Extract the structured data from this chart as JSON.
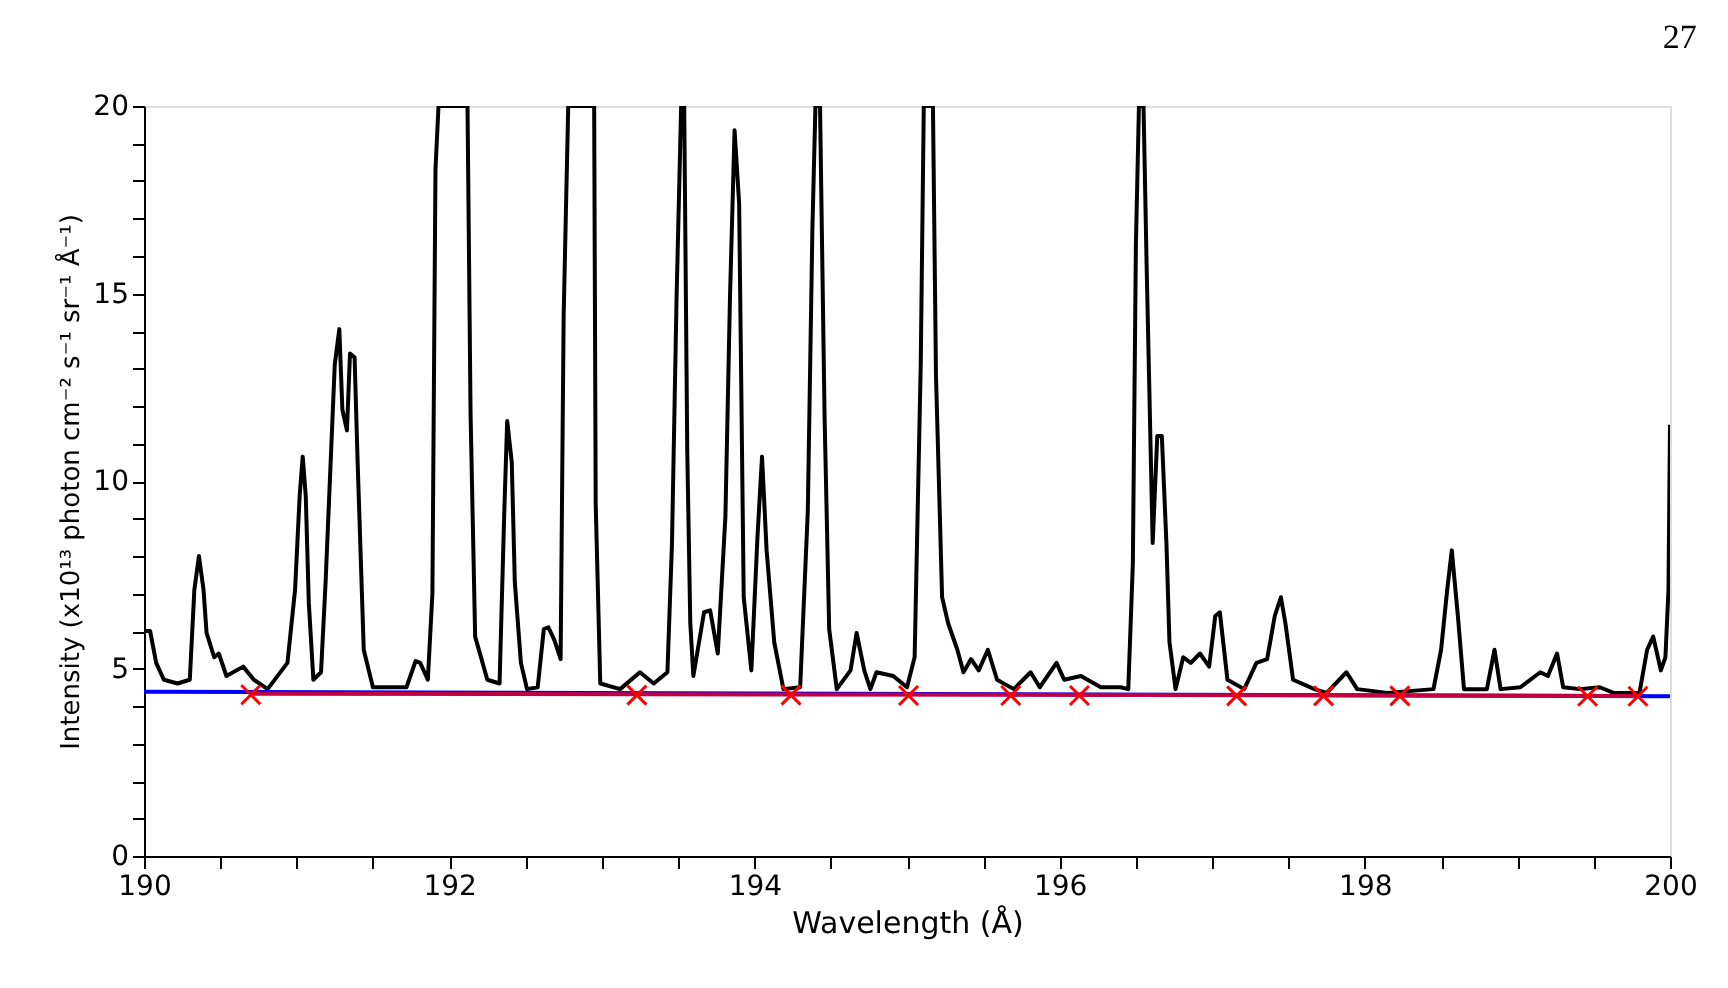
{
  "chart_data": {
    "type": "line",
    "xlabel": "Wavelength (Å)",
    "ylabel": "Intensity (x10¹³ photon cm⁻² s⁻¹ sr⁻¹ Å⁻¹)",
    "annotations": [
      "27"
    ],
    "xlim": [
      190,
      200
    ],
    "ylim": [
      0,
      20
    ],
    "xticks": [
      190,
      {
        "value": 190.5,
        "label": null
      },
      {
        "value": 191,
        "label": null
      },
      {
        "value": 191.5,
        "label": null
      },
      192,
      {
        "value": 192.5,
        "label": null
      },
      {
        "value": 193,
        "label": null
      },
      {
        "value": 193.5,
        "label": null
      },
      194,
      {
        "value": 194.5,
        "label": null
      },
      {
        "value": 195,
        "label": null
      },
      {
        "value": 195.5,
        "label": null
      },
      196,
      {
        "value": 196.5,
        "label": null
      },
      {
        "value": 197,
        "label": null
      },
      {
        "value": 197.5,
        "label": null
      },
      198,
      {
        "value": 198.5,
        "label": null
      },
      {
        "value": 199,
        "label": null
      },
      {
        "value": 199.5,
        "label": null
      },
      200
    ],
    "yticks": [
      0,
      {
        "value": 1,
        "label": null
      },
      {
        "value": 2,
        "label": null
      },
      {
        "value": 3,
        "label": null
      },
      {
        "value": 4,
        "label": null
      },
      5,
      {
        "value": 6,
        "label": null
      },
      {
        "value": 7,
        "label": null
      },
      {
        "value": 8,
        "label": null
      },
      {
        "value": 9,
        "label": null
      },
      10,
      {
        "value": 11,
        "label": null
      },
      {
        "value": 12,
        "label": null
      },
      {
        "value": 13,
        "label": null
      },
      {
        "value": 14,
        "label": null
      },
      15,
      {
        "value": 16,
        "label": null
      },
      {
        "value": 17,
        "label": null
      },
      {
        "value": 18,
        "label": null
      },
      {
        "value": 19,
        "label": null
      },
      20
    ],
    "grid": false,
    "series": [
      {
        "type": "line",
        "color": "#000000",
        "line_style": "solid",
        "marker": "none",
        "x": [
          190.01,
          190.04,
          190.08,
          190.13,
          190.22,
          190.3,
          190.33,
          190.36,
          190.39,
          190.41,
          190.46,
          190.49,
          190.54,
          190.65,
          190.72,
          190.81,
          190.94,
          190.99,
          191.02,
          191.04,
          191.06,
          191.08,
          191.11,
          191.16,
          191.19,
          191.25,
          191.28,
          191.3,
          191.33,
          191.35,
          191.38,
          191.4,
          191.44,
          191.5,
          191.66,
          191.72,
          191.78,
          191.81,
          191.86,
          191.89,
          191.91,
          191.93,
          192.12,
          192.14,
          192.17,
          192.25,
          192.33,
          192.36,
          192.38,
          192.41,
          192.43,
          192.47,
          192.51,
          192.58,
          192.62,
          192.65,
          192.69,
          192.73,
          192.75,
          192.78,
          192.95,
          192.96,
          192.99,
          193.12,
          193.25,
          193.34,
          193.43,
          193.46,
          193.49,
          193.52,
          193.54,
          193.56,
          193.58,
          193.6,
          193.67,
          193.71,
          193.76,
          193.81,
          193.84,
          193.87,
          193.9,
          193.93,
          193.98,
          194.02,
          194.05,
          194.08,
          194.13,
          194.19,
          194.3,
          194.35,
          194.38,
          194.4,
          194.43,
          194.46,
          194.49,
          194.54,
          194.63,
          194.67,
          194.72,
          194.76,
          194.8,
          194.91,
          195.0,
          195.05,
          195.09,
          195.11,
          195.17,
          195.19,
          195.23,
          195.27,
          195.33,
          195.37,
          195.42,
          195.47,
          195.53,
          195.59,
          195.7,
          195.81,
          195.87,
          195.98,
          196.03,
          196.14,
          196.27,
          196.4,
          196.45,
          196.48,
          196.5,
          196.52,
          196.55,
          196.57,
          196.61,
          196.64,
          196.67,
          196.7,
          196.72,
          196.76,
          196.81,
          196.86,
          196.92,
          196.98,
          197.02,
          197.05,
          197.1,
          197.21,
          197.29,
          197.36,
          197.41,
          197.45,
          197.48,
          197.53,
          197.67,
          197.75,
          197.88,
          197.95,
          198.15,
          198.45,
          198.5,
          198.54,
          198.57,
          198.61,
          198.65,
          198.8,
          198.85,
          198.89,
          199.02,
          199.15,
          199.2,
          199.26,
          199.3,
          199.41,
          199.54,
          199.63,
          199.8,
          199.85,
          199.89,
          199.94,
          199.97,
          199.99,
          200.0
        ],
        "values": [
          6.0,
          6.0,
          5.15,
          4.7,
          4.6,
          4.7,
          7.1,
          8.0,
          7.1,
          5.95,
          5.3,
          5.4,
          4.8,
          5.05,
          4.7,
          4.45,
          5.15,
          7.1,
          9.6,
          10.65,
          9.6,
          6.75,
          4.7,
          4.9,
          7.3,
          13.1,
          14.05,
          11.9,
          11.35,
          13.4,
          13.3,
          10.5,
          5.5,
          4.5,
          4.5,
          4.5,
          5.2,
          5.15,
          4.7,
          7.0,
          18.3,
          20,
          20,
          11.8,
          5.85,
          4.7,
          4.6,
          9.05,
          11.6,
          10.5,
          7.3,
          5.15,
          4.45,
          4.5,
          6.05,
          6.1,
          5.75,
          5.25,
          14.4,
          20,
          20,
          9.4,
          4.6,
          4.45,
          4.9,
          4.6,
          4.9,
          8.35,
          14.9,
          20,
          20,
          10.8,
          6.2,
          4.8,
          6.5,
          6.55,
          5.4,
          9.05,
          14.9,
          19.35,
          17.4,
          6.9,
          4.95,
          8.5,
          10.65,
          8.15,
          5.7,
          4.45,
          4.5,
          9.2,
          16.7,
          20,
          20,
          11.7,
          6.05,
          4.45,
          4.95,
          5.95,
          4.95,
          4.45,
          4.9,
          4.8,
          4.5,
          5.3,
          13.1,
          20,
          20,
          12.8,
          6.9,
          6.2,
          5.5,
          4.9,
          5.25,
          4.95,
          5.5,
          4.7,
          4.45,
          4.9,
          4.5,
          5.15,
          4.7,
          4.8,
          4.5,
          4.5,
          4.45,
          7.8,
          16.3,
          20,
          20,
          15.8,
          8.35,
          11.2,
          11.2,
          8.35,
          5.7,
          4.45,
          5.3,
          5.15,
          5.4,
          5.05,
          6.4,
          6.5,
          4.7,
          4.45,
          5.15,
          5.25,
          6.4,
          6.9,
          6.2,
          4.7,
          4.45,
          4.35,
          4.9,
          4.45,
          4.35,
          4.45,
          5.5,
          7.1,
          8.15,
          6.4,
          4.45,
          4.45,
          5.5,
          4.45,
          4.5,
          4.9,
          4.8,
          5.4,
          4.5,
          4.45,
          4.5,
          4.35,
          4.35,
          5.5,
          5.85,
          4.95,
          5.3,
          7.1,
          11.5
        ]
      },
      {
        "type": "line",
        "color": "#0000ff",
        "line_style": "solid",
        "marker": "none",
        "x": [
          190,
          200
        ],
        "values": [
          4.38,
          4.26
        ]
      },
      {
        "type": "line",
        "color": "#c00040",
        "line_style": "solid",
        "marker": "none",
        "x": [
          190.7,
          199.79
        ],
        "values": [
          4.33,
          4.27
        ]
      },
      {
        "type": "scatter",
        "color": "#ff0000",
        "marker": "cross",
        "x": [
          190.7,
          193.23,
          194.24,
          195.01,
          195.68,
          196.13,
          197.16,
          197.73,
          198.23,
          199.46,
          199.79
        ],
        "values": [
          4.3,
          4.29,
          4.29,
          4.28,
          4.28,
          4.28,
          4.27,
          4.27,
          4.27,
          4.26,
          4.26
        ]
      }
    ]
  }
}
